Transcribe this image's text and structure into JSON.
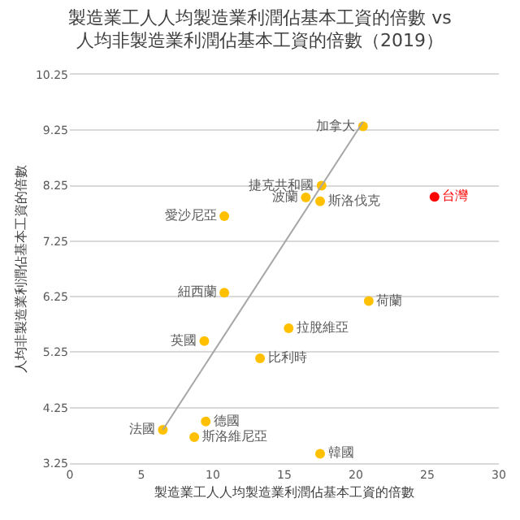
{
  "chart_data": {
    "type": "scatter",
    "title": "製造業工人人均製造業利潤佔基本工資的倍數 vs\n人均非製造業利潤佔基本工資的倍數（2019）",
    "xlabel": "製造業工人人均製造業利潤佔基本工資的倍數",
    "ylabel": "人均非製造業利潤佔基本工資的倍數",
    "xlim": [
      0,
      30
    ],
    "xticks": [
      0,
      5,
      10,
      15,
      20,
      25,
      30
    ],
    "ylim": [
      3.25,
      10.25
    ],
    "yticks": [
      3.25,
      4.25,
      5.25,
      6.25,
      7.25,
      8.25,
      9.25,
      10.25
    ],
    "grid": "y",
    "marker": "circle",
    "series": [
      {
        "name": "加拿大",
        "color": "#ffc000",
        "x": [
          20.5
        ],
        "values": [
          9.32
        ]
      },
      {
        "name": "捷克共和國",
        "color": "#ffc000",
        "x": [
          17.6
        ],
        "values": [
          8.25
        ]
      },
      {
        "name": "波蘭",
        "color": "#ffc000",
        "x": [
          16.5
        ],
        "values": [
          8.04
        ]
      },
      {
        "name": "斯洛伐克",
        "color": "#ffc000",
        "x": [
          17.5
        ],
        "values": [
          7.97
        ]
      },
      {
        "name": "台灣",
        "color": "#ff0000",
        "x": [
          25.5
        ],
        "values": [
          8.05
        ]
      },
      {
        "name": "愛沙尼亞",
        "color": "#ffc000",
        "x": [
          10.8
        ],
        "values": [
          7.7
        ]
      },
      {
        "name": "紐西蘭",
        "color": "#ffc000",
        "x": [
          10.8
        ],
        "values": [
          6.32
        ]
      },
      {
        "name": "荷蘭",
        "color": "#ffc000",
        "x": [
          20.9
        ],
        "values": [
          6.17
        ]
      },
      {
        "name": "拉脫維亞",
        "color": "#ffc000",
        "x": [
          15.3
        ],
        "values": [
          5.68
        ]
      },
      {
        "name": "英國",
        "color": "#ffc000",
        "x": [
          9.4
        ],
        "values": [
          5.45
        ]
      },
      {
        "name": "比利時",
        "color": "#ffc000",
        "x": [
          13.3
        ],
        "values": [
          5.14
        ]
      },
      {
        "name": "德國",
        "color": "#ffc000",
        "x": [
          9.5
        ],
        "values": [
          4.0
        ]
      },
      {
        "name": "法國",
        "color": "#ffc000",
        "x": [
          6.5
        ],
        "values": [
          3.85
        ]
      },
      {
        "name": "斯洛維尼亞",
        "color": "#ffc000",
        "x": [
          8.7
        ],
        "values": [
          3.72
        ]
      },
      {
        "name": "韓國",
        "color": "#ffc000",
        "x": [
          17.5
        ],
        "values": [
          3.42
        ]
      },
      {
        "type": "line",
        "marker": "none",
        "color": "#a6a6a6",
        "x": [
          6.5,
          20.5
        ],
        "values": [
          3.85,
          9.4
        ]
      }
    ]
  }
}
